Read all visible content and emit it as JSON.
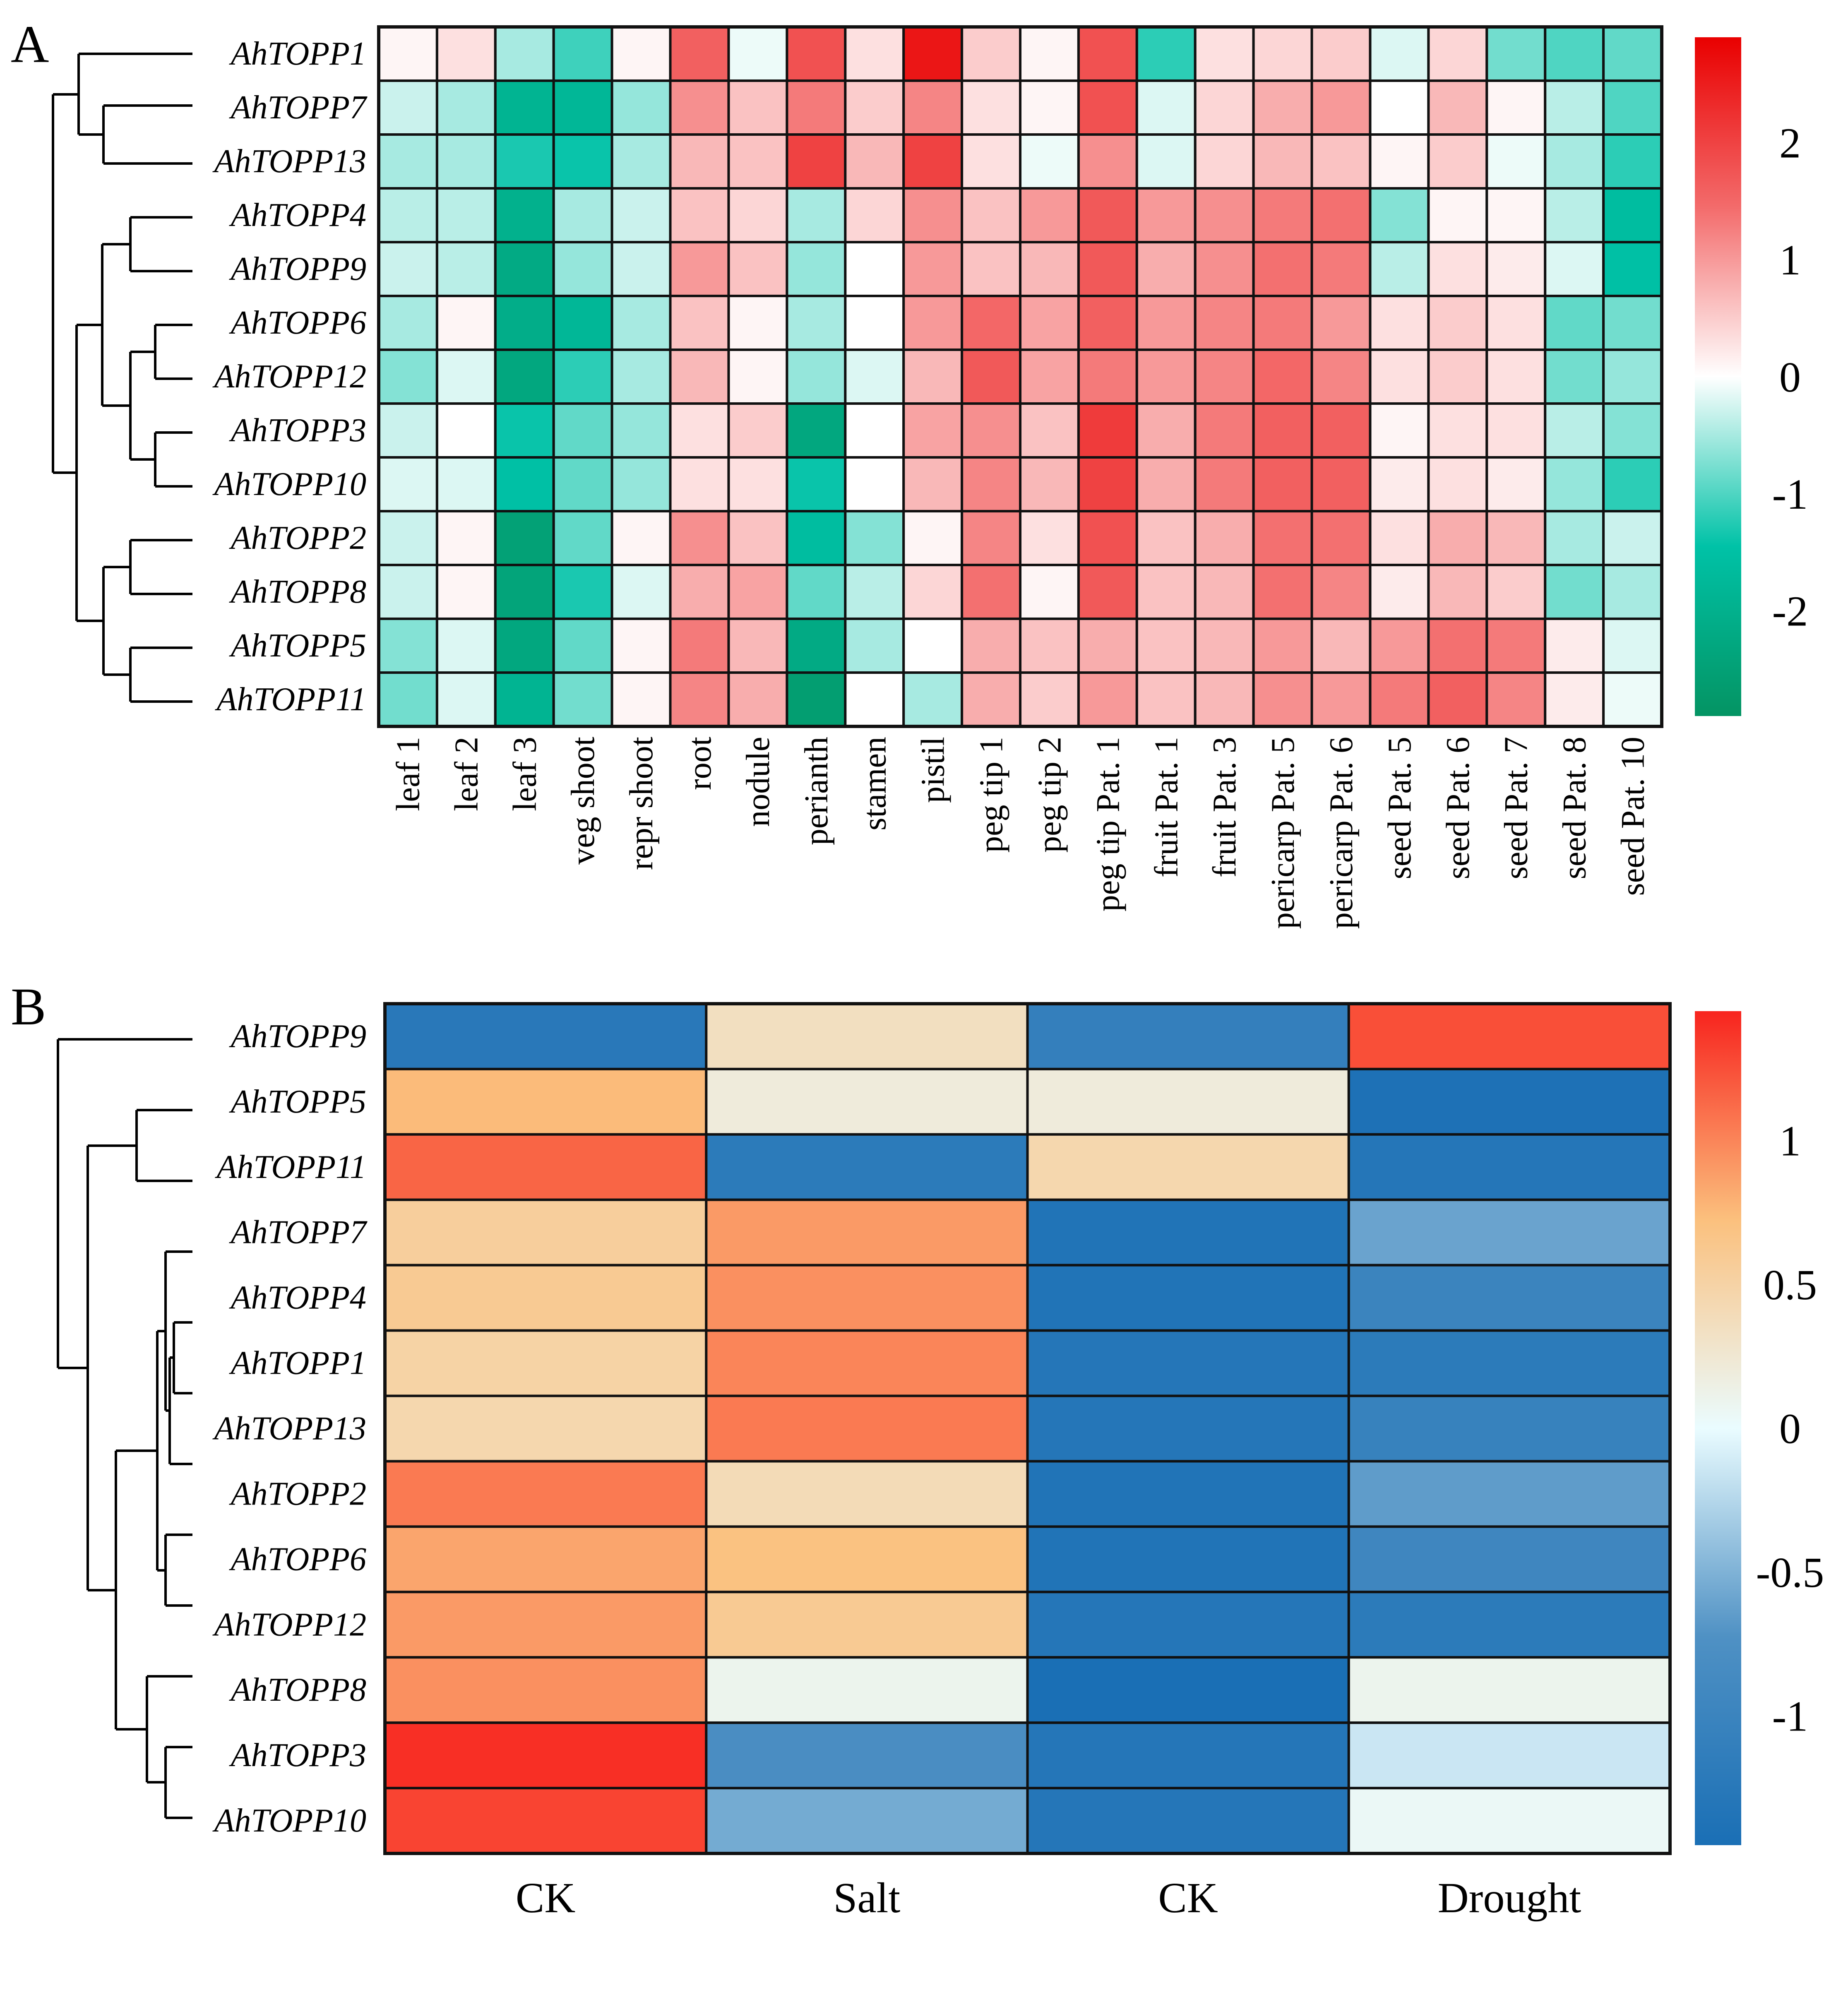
{
  "figure": {
    "panels": [
      "A",
      "B"
    ]
  },
  "chart_data": [
    {
      "panel": "A",
      "type": "heatmap",
      "title": "",
      "rows": [
        "AhTOPP1",
        "AhTOPP7",
        "AhTOPP13",
        "AhTOPP4",
        "AhTOPP9",
        "AhTOPP6",
        "AhTOPP12",
        "AhTOPP3",
        "AhTOPP10",
        "AhTOPP2",
        "AhTOPP8",
        "AhTOPP5",
        "AhTOPP11"
      ],
      "columns": [
        "leaf 1",
        "leaf 2",
        "leaf 3",
        "veg shoot",
        "repr shoot",
        "root",
        "nodule",
        "perianth",
        "stamen",
        "pistil",
        "peg tip 1",
        "peg tip 2",
        "peg tip Pat. 1",
        "fruit Pat. 1",
        "fruit Pat. 3",
        "pericarp Pat. 5",
        "pericarp Pat. 6",
        "seed Pat. 5",
        "seed Pat. 6",
        "seed Pat. 7",
        "seed Pat. 8",
        "seed Pat. 10"
      ],
      "values": [
        [
          0.1,
          0.3,
          -0.5,
          -1.1,
          0.1,
          1.6,
          -0.1,
          1.8,
          0.3,
          2.6,
          0.5,
          0.1,
          1.8,
          -1.2,
          0.3,
          0.4,
          0.5,
          -0.2,
          0.4,
          -0.8,
          -1.0,
          -0.9
        ],
        [
          -0.3,
          -0.5,
          -1.9,
          -1.8,
          -0.6,
          1.1,
          0.6,
          1.3,
          0.5,
          1.2,
          0.3,
          0.1,
          1.8,
          -0.2,
          0.4,
          0.8,
          1.0,
          0.0,
          0.7,
          0.1,
          -0.4,
          -1.0
        ],
        [
          -0.5,
          -0.5,
          -1.3,
          -1.4,
          -0.5,
          0.7,
          0.6,
          2.0,
          0.7,
          2.0,
          0.3,
          -0.1,
          1.1,
          -0.2,
          0.4,
          0.7,
          0.6,
          0.1,
          0.5,
          -0.1,
          -0.5,
          -1.2
        ],
        [
          -0.4,
          -0.4,
          -2.0,
          -0.5,
          -0.3,
          0.6,
          0.4,
          -0.5,
          0.4,
          1.1,
          0.6,
          1.0,
          1.7,
          1.0,
          1.1,
          1.3,
          1.4,
          -0.7,
          0.1,
          0.1,
          -0.4,
          -1.6
        ],
        [
          -0.3,
          -0.4,
          -2.2,
          -0.6,
          -0.3,
          1.0,
          0.6,
          -0.6,
          0.0,
          1.0,
          0.6,
          0.7,
          1.7,
          0.8,
          1.1,
          1.4,
          1.3,
          -0.4,
          0.3,
          0.2,
          -0.2,
          -1.5
        ],
        [
          -0.5,
          0.1,
          -2.1,
          -1.8,
          -0.5,
          0.6,
          0.1,
          -0.5,
          0.0,
          1.0,
          1.5,
          0.9,
          1.6,
          1.0,
          1.2,
          1.3,
          1.0,
          0.3,
          0.5,
          0.3,
          -0.9,
          -0.8
        ],
        [
          -0.7,
          -0.2,
          -2.3,
          -1.2,
          -0.5,
          0.7,
          0.1,
          -0.6,
          -0.2,
          0.7,
          1.7,
          0.9,
          1.3,
          1.0,
          1.2,
          1.5,
          1.2,
          0.3,
          0.5,
          0.3,
          -0.8,
          -0.6
        ],
        [
          -0.3,
          0.0,
          -1.4,
          -0.9,
          -0.6,
          0.3,
          0.5,
          -2.3,
          0.0,
          0.9,
          1.1,
          0.6,
          2.1,
          0.8,
          1.3,
          1.6,
          1.6,
          0.1,
          0.3,
          0.3,
          -0.4,
          -0.7
        ],
        [
          -0.2,
          -0.2,
          -1.5,
          -0.9,
          -0.6,
          0.3,
          0.3,
          -1.4,
          0.0,
          0.7,
          1.2,
          0.7,
          2.0,
          0.8,
          1.3,
          1.6,
          1.6,
          0.2,
          0.3,
          0.2,
          -0.6,
          -1.2
        ],
        [
          -0.3,
          0.1,
          -2.5,
          -0.9,
          0.1,
          1.1,
          0.6,
          -1.6,
          -0.7,
          0.1,
          1.2,
          0.3,
          1.8,
          0.6,
          0.8,
          1.4,
          1.4,
          0.3,
          0.8,
          0.7,
          -0.5,
          -0.3
        ],
        [
          -0.3,
          0.1,
          -2.4,
          -1.3,
          -0.2,
          0.8,
          0.9,
          -0.9,
          -0.4,
          0.4,
          1.4,
          0.1,
          1.7,
          0.6,
          0.7,
          1.4,
          1.2,
          0.2,
          0.7,
          0.5,
          -0.8,
          -0.5
        ],
        [
          -0.7,
          -0.2,
          -2.3,
          -0.9,
          0.1,
          1.3,
          0.7,
          -2.2,
          -0.5,
          0.0,
          0.8,
          0.6,
          0.8,
          0.6,
          0.7,
          1.0,
          0.7,
          1.0,
          1.4,
          1.3,
          0.2,
          -0.2
        ],
        [
          -0.8,
          -0.2,
          -1.9,
          -0.8,
          0.1,
          1.2,
          0.8,
          -2.6,
          0.0,
          -0.5,
          0.8,
          0.5,
          1.0,
          0.6,
          0.7,
          1.1,
          1.0,
          1.3,
          1.6,
          1.2,
          0.2,
          -0.1
        ]
      ],
      "colorbar": {
        "min": -2.9,
        "max": 2.9,
        "ticks": [
          "2",
          "1",
          "0",
          "-1",
          "-2"
        ],
        "tick_values": [
          2,
          1,
          0,
          -1,
          -2
        ],
        "colors": [
          "#049463",
          "#00c2a7",
          "#ffffff",
          "#f36b6b",
          "#e90000"
        ]
      },
      "xlabel": "",
      "ylabel": "",
      "dendrogram": "rows, left side"
    },
    {
      "panel": "B",
      "type": "heatmap",
      "title": "",
      "rows": [
        "AhTOPP9",
        "AhTOPP5",
        "AhTOPP11",
        "AhTOPP7",
        "AhTOPP4",
        "AhTOPP1",
        "AhTOPP13",
        "AhTOPP2",
        "AhTOPP6",
        "AhTOPP12",
        "AhTOPP8",
        "AhTOPP3",
        "AhTOPP10"
      ],
      "columns": [
        "CK",
        "Salt",
        "CK",
        "Drought"
      ],
      "values": [
        [
          -1.25,
          0.35,
          -1.1,
          1.25
        ],
        [
          0.75,
          0.2,
          0.2,
          -1.4
        ],
        [
          1.15,
          -1.2,
          0.45,
          -1.3
        ],
        [
          0.55,
          0.9,
          -1.35,
          -0.6
        ],
        [
          0.6,
          0.95,
          -1.35,
          -1.0
        ],
        [
          0.5,
          1.0,
          -1.3,
          -1.2
        ],
        [
          0.45,
          1.05,
          -1.3,
          -1.05
        ],
        [
          1.05,
          0.4,
          -1.35,
          -0.65
        ],
        [
          0.85,
          0.7,
          -1.35,
          -0.95
        ],
        [
          0.9,
          0.6,
          -1.3,
          -1.2
        ],
        [
          0.95,
          0.1,
          -1.45,
          0.1
        ],
        [
          1.4,
          -0.8,
          -1.3,
          -0.15
        ],
        [
          1.3,
          -0.55,
          -1.3,
          0.05
        ]
      ],
      "colorbar": {
        "min": -1.45,
        "max": 1.45,
        "ticks": [
          "1",
          "0.5",
          "0",
          "-0.5",
          "-1"
        ],
        "tick_values": [
          1,
          0.5,
          0,
          -0.5,
          -1
        ],
        "colors": [
          "#1a6fb5",
          "#4f91c4",
          "#eafcff",
          "#fbc07d",
          "#f8241e"
        ]
      },
      "xlabel": "",
      "ylabel": "",
      "dendrogram": "rows, left side"
    }
  ]
}
